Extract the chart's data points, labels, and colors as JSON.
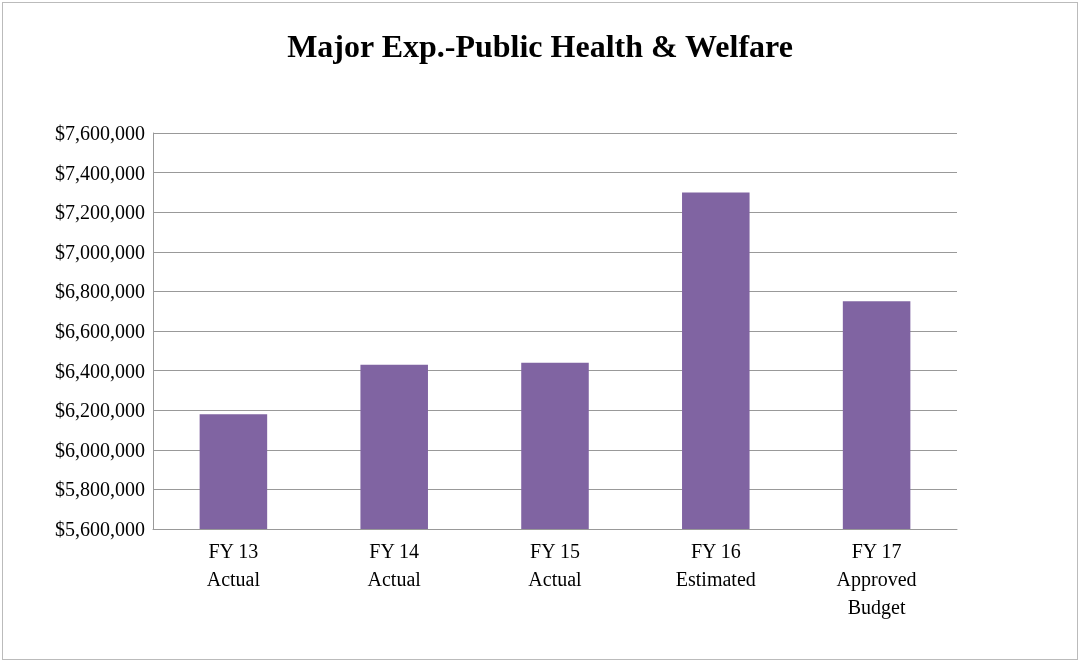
{
  "chart_data": {
    "type": "bar",
    "title": "Major Exp.-Public Health & Welfare",
    "categories": [
      "FY 13\nActual",
      "FY 14\nActual",
      "FY 15\nActual",
      "FY 16\nEstimated",
      "FY 17\nApproved\nBudget"
    ],
    "values": [
      6180000,
      6430000,
      6440000,
      7300000,
      6750000
    ],
    "color": "#8064a2",
    "ylim": [
      5600000,
      7600000
    ],
    "yticks": [
      {
        "value": 5600000,
        "label": "$5,600,000"
      },
      {
        "value": 5800000,
        "label": "$5,800,000"
      },
      {
        "value": 6000000,
        "label": "$6,000,000"
      },
      {
        "value": 6200000,
        "label": "$6,200,000"
      },
      {
        "value": 6400000,
        "label": "$6,400,000"
      },
      {
        "value": 6600000,
        "label": "$6,600,000"
      },
      {
        "value": 6800000,
        "label": "$6,800,000"
      },
      {
        "value": 7000000,
        "label": "$7,000,000"
      },
      {
        "value": 7200000,
        "label": "$7,200,000"
      },
      {
        "value": 7400000,
        "label": "$7,400,000"
      },
      {
        "value": 7600000,
        "label": "$7,600,000"
      }
    ],
    "grid": "y"
  }
}
